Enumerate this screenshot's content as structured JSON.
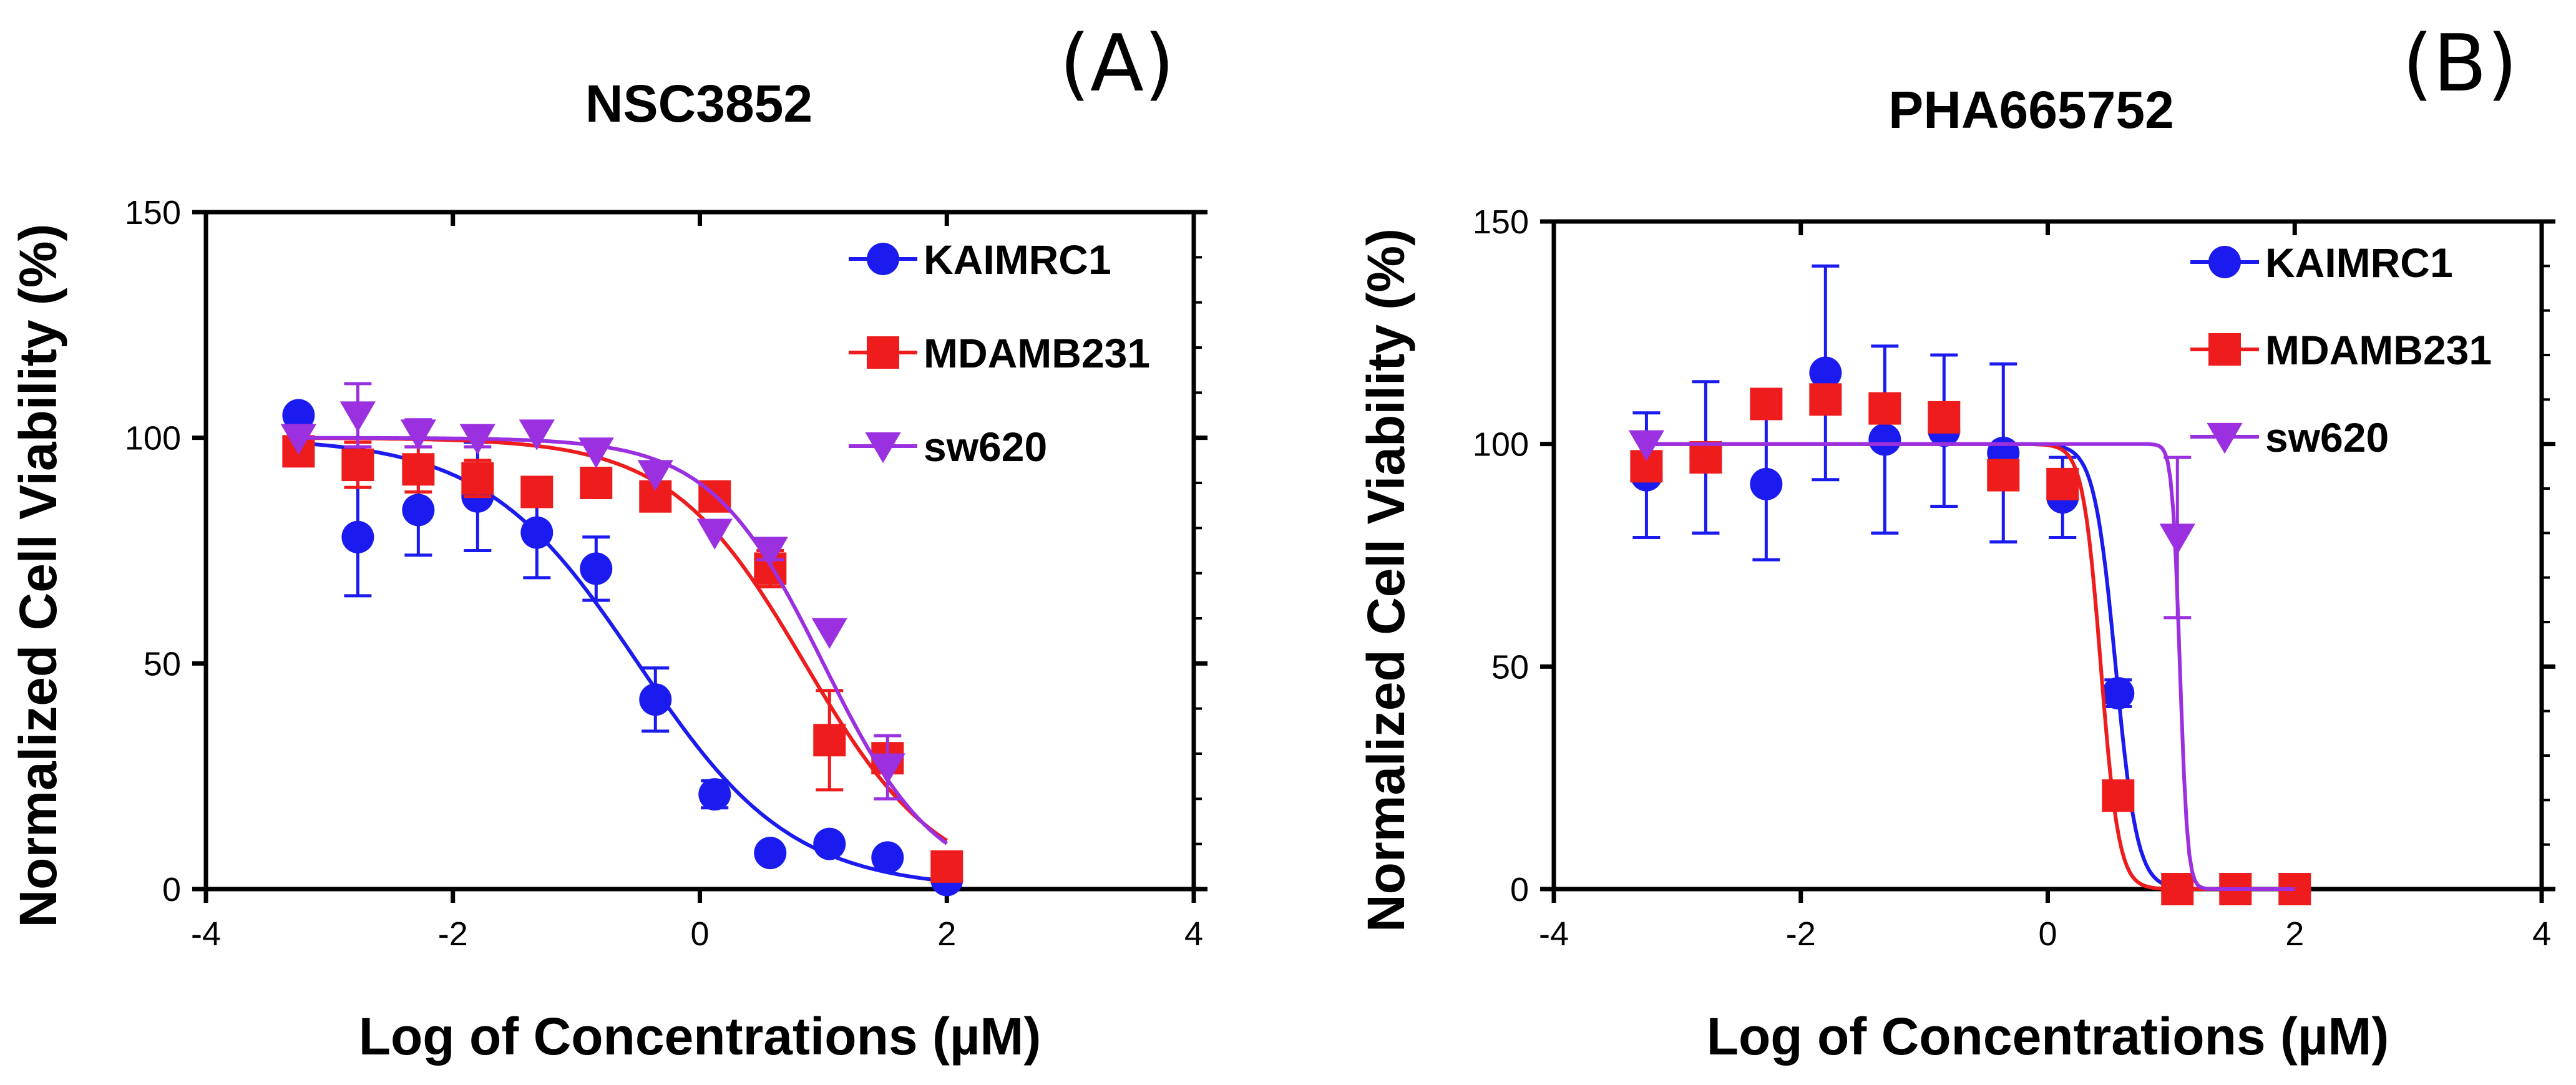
{
  "chart_data": [
    {
      "type": "scatter",
      "panel_label": "(A)",
      "title": "NSC3852",
      "xlabel": "Log of Concentrations (µM)",
      "ylabel": "Normalized Cell Viability (%)",
      "xlim": [
        -4,
        4
      ],
      "ylim": [
        0,
        150
      ],
      "x_ticks": [
        "-4",
        "-2",
        "0",
        "2",
        "4"
      ],
      "y_ticks": [
        "0",
        "50",
        "100",
        "150"
      ],
      "legend_position": "top-right",
      "series": [
        {
          "name": "KAIMRC1",
          "color": "#1b1bf0",
          "marker": "circle",
          "x": [
            -3.25,
            -2.77,
            -2.28,
            -1.8,
            -1.32,
            -0.84,
            -0.36,
            0.12,
            0.57,
            1.05,
            1.52,
            2.0
          ],
          "y": [
            105,
            78,
            84,
            87,
            79,
            71,
            42,
            21,
            8,
            10,
            7,
            2
          ],
          "err": [
            0,
            13,
            10,
            12,
            10,
            7,
            7,
            3,
            0,
            0,
            0,
            0
          ],
          "fit": {
            "bottom": 0,
            "top": 100,
            "logIC50": -0.5,
            "hill": -0.7
          }
        },
        {
          "name": "MDAMB231",
          "color": "#ee1c1c",
          "marker": "square",
          "x": [
            -3.25,
            -2.77,
            -2.28,
            -1.8,
            -1.32,
            -0.84,
            -0.36,
            0.12,
            0.57,
            1.05,
            1.52,
            2.0
          ],
          "y": [
            97,
            94,
            93,
            91,
            88,
            90,
            87,
            87,
            71,
            33,
            29,
            5
          ],
          "err": [
            0,
            5,
            5,
            4,
            0,
            0,
            0,
            0,
            4,
            11,
            0,
            0
          ],
          "fit": {
            "bottom": 0,
            "top": 100,
            "logIC50": 0.85,
            "hill": -0.8
          }
        },
        {
          "name": "sw620",
          "color": "#9b30e0",
          "marker": "triangle-down",
          "x": [
            -3.25,
            -2.77,
            -2.28,
            -1.8,
            -1.32,
            -0.84,
            -0.36,
            0.12,
            0.57,
            1.05,
            1.52
          ],
          "y": [
            100,
            105,
            101,
            100,
            101,
            97,
            92,
            79,
            75,
            57,
            27
          ],
          "err": [
            0,
            7,
            3,
            2,
            0,
            0,
            0,
            0,
            2,
            0,
            7
          ],
          "fit": {
            "bottom": 0,
            "top": 100,
            "logIC50": 1.0,
            "hill": -0.95
          }
        }
      ]
    },
    {
      "type": "scatter",
      "panel_label": "(B)",
      "title": "PHA665752",
      "xlabel": "Log of Concentrations (µM)",
      "ylabel": "Normalized Cell Viability (%)",
      "xlim": [
        -4,
        4
      ],
      "ylim": [
        0,
        150
      ],
      "x_ticks": [
        "-4",
        "-2",
        "0",
        "2",
        "4"
      ],
      "y_ticks": [
        "0",
        "50",
        "100",
        "150"
      ],
      "legend_position": "top-right",
      "series": [
        {
          "name": "KAIMRC1",
          "color": "#1b1bf0",
          "marker": "circle",
          "x": [
            -3.25,
            -2.77,
            -2.28,
            -1.8,
            -1.32,
            -0.84,
            -0.36,
            0.12,
            0.57,
            1.05,
            1.52,
            2.0
          ],
          "y": [
            93,
            97,
            91,
            116,
            101,
            103,
            98,
            88,
            44,
            0,
            0,
            0
          ],
          "err": [
            14,
            17,
            17,
            24,
            21,
            17,
            20,
            9,
            3,
            0,
            0,
            0
          ],
          "fit": {
            "bottom": 0,
            "top": 100,
            "logIC50": 0.55,
            "hill": -5
          }
        },
        {
          "name": "MDAMB231",
          "color": "#ee1c1c",
          "marker": "square",
          "x": [
            -3.25,
            -2.77,
            -2.28,
            -1.8,
            -1.32,
            -0.84,
            -0.36,
            0.12,
            0.57,
            1.05,
            1.52,
            2.0
          ],
          "y": [
            95,
            97,
            109,
            110,
            108,
            106,
            93,
            91,
            21,
            0,
            0,
            0
          ],
          "err": [
            0,
            0,
            0,
            0,
            0,
            0,
            0,
            0,
            0,
            0,
            0,
            0
          ],
          "fit": {
            "bottom": 0,
            "top": 100,
            "logIC50": 0.43,
            "hill": -6
          }
        },
        {
          "name": "sw620",
          "color": "#9b30e0",
          "marker": "triangle-down",
          "x": [
            -3.25,
            1.05
          ],
          "y": [
            100,
            79
          ],
          "err": [
            0,
            18
          ],
          "fit": {
            "bottom": 0,
            "top": 100,
            "logIC50": 1.07,
            "hill": -14
          }
        }
      ]
    }
  ]
}
